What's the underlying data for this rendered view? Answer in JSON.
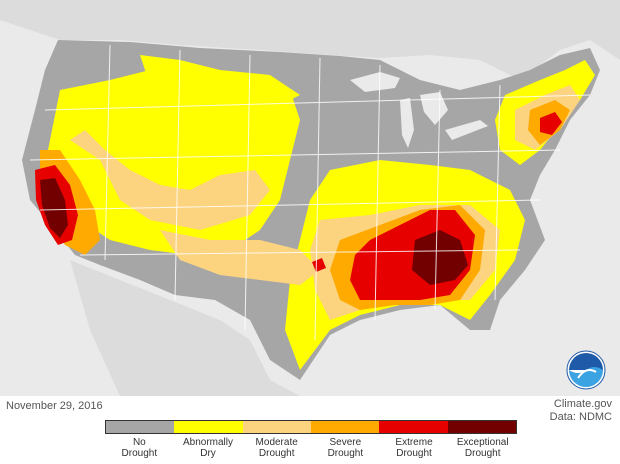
{
  "date": "November 29, 2016",
  "credit": {
    "line1": "Climate.gov",
    "line2": "Data: NDMC"
  },
  "logo_text": "NOAA",
  "legend": [
    {
      "label": "No\nDrought",
      "color": "#a6a6a6"
    },
    {
      "label": "Abnormally\nDry",
      "color": "#ffff00"
    },
    {
      "label": "Moderate\nDrought",
      "color": "#fcd37f"
    },
    {
      "label": "Severe\nDrought",
      "color": "#ffaa00"
    },
    {
      "label": "Extreme\nDrought",
      "color": "#e60000"
    },
    {
      "label": "Exceptional\nDrought",
      "color": "#730000"
    }
  ],
  "colors": {
    "land_outside": "#dcdcdc",
    "water": "#eaeaea",
    "state_lines": "#ffffff"
  }
}
